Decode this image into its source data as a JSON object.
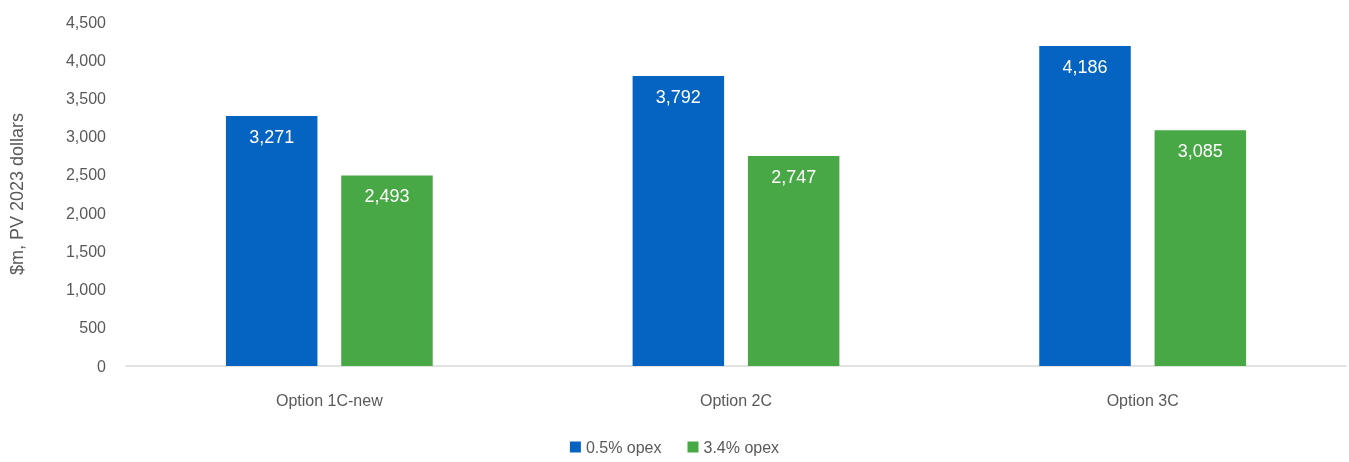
{
  "chart_data": {
    "type": "bar",
    "ylabel": "$m, PV 2023 dollars",
    "categories": [
      "Option 1C-new",
      "Option 2C",
      "Option 3C"
    ],
    "series": [
      {
        "name": "0.5% opex",
        "color": "#0563c1",
        "values": [
          3271,
          3792,
          4186
        ],
        "value_labels": [
          "3,271",
          "3,792",
          "4,186"
        ]
      },
      {
        "name": "3.4% opex",
        "color": "#48a846",
        "values": [
          2493,
          2747,
          3085
        ],
        "value_labels": [
          "2,493",
          "2,747",
          "3,085"
        ]
      }
    ],
    "ylim": [
      0,
      4500
    ],
    "yticks": [
      0,
      {
        "value": 500,
        "label": "500"
      },
      {
        "value": 1000,
        "label": "1,000"
      },
      {
        "value": 1500,
        "label": "1,500"
      },
      {
        "value": 2000,
        "label": "2,000"
      },
      {
        "value": 2500,
        "label": "2,500"
      },
      {
        "value": 3000,
        "label": "3,000"
      },
      {
        "value": 3500,
        "label": "3,500"
      },
      {
        "value": 4000,
        "label": "4,000"
      },
      {
        "value": 4500,
        "label": "4,500"
      }
    ],
    "grid": false,
    "legend": "bottom"
  }
}
